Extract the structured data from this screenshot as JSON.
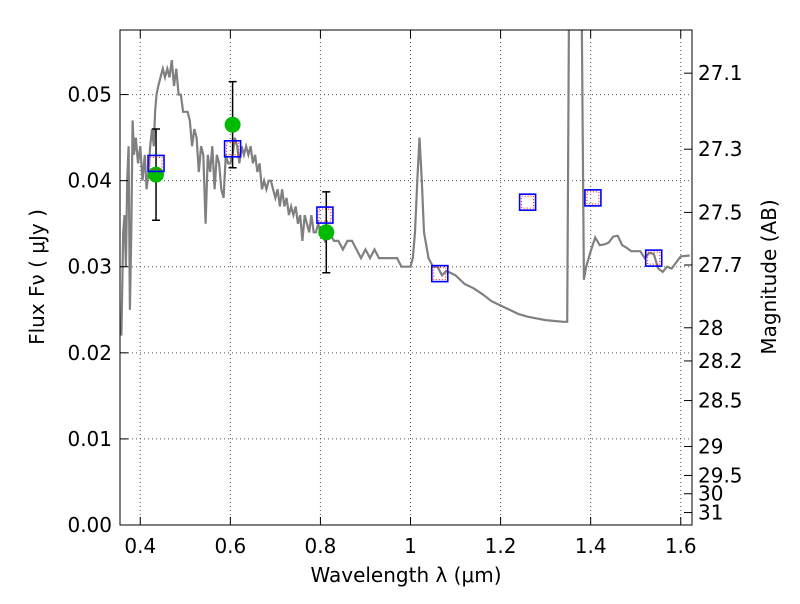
{
  "chart_data": {
    "type": "scatter",
    "xlabel": "Wavelength  λ (μm)",
    "ylabel": "Flux  Fν  ( μJy )",
    "y2label": "Magnitude (AB)",
    "xlim": [
      0.355,
      1.625
    ],
    "ylim": [
      0.0,
      0.0575
    ],
    "grid": true,
    "x_ticks": [
      {
        "value": 0.4,
        "label": "0.4"
      },
      {
        "value": 0.6,
        "label": "0.6"
      },
      {
        "value": 0.8,
        "label": "0.8"
      },
      {
        "value": 1.0,
        "label": "1"
      },
      {
        "value": 1.2,
        "label": "1.2"
      },
      {
        "value": 1.4,
        "label": "1.4"
      },
      {
        "value": 1.6,
        "label": "1.6"
      }
    ],
    "y_ticks": [
      {
        "value": 0.0,
        "label": "0.00"
      },
      {
        "value": 0.01,
        "label": "0.01"
      },
      {
        "value": 0.02,
        "label": "0.02"
      },
      {
        "value": 0.03,
        "label": "0.03"
      },
      {
        "value": 0.04,
        "label": "0.04"
      },
      {
        "value": 0.05,
        "label": "0.05"
      }
    ],
    "y2_ticks": [
      {
        "mag": 27.1,
        "label": "27.1"
      },
      {
        "mag": 27.3,
        "label": "27.3"
      },
      {
        "mag": 27.5,
        "label": "27.5"
      },
      {
        "mag": 27.7,
        "label": "27.7"
      },
      {
        "mag": 28.0,
        "label": "28"
      },
      {
        "mag": 28.2,
        "label": "28.2"
      },
      {
        "mag": 28.5,
        "label": "28.5"
      },
      {
        "mag": 29.0,
        "label": "29"
      },
      {
        "mag": 29.5,
        "label": "29.5"
      },
      {
        "mag": 30.0,
        "label": "30"
      },
      {
        "mag": 31.0,
        "label": "31"
      }
    ],
    "colors": {
      "sed": "#808080",
      "observed": "#00bb00",
      "model_box": "#0000ff",
      "model_inner": "#ff0000",
      "errorbar": "#000000",
      "grid": "#555555"
    },
    "sed": {
      "x": [
        0.358,
        0.362,
        0.365,
        0.368,
        0.371,
        0.374,
        0.377,
        0.38,
        0.383,
        0.386,
        0.39,
        0.395,
        0.4,
        0.405,
        0.41,
        0.414,
        0.418,
        0.422,
        0.426,
        0.43,
        0.433,
        0.436,
        0.44,
        0.445,
        0.45,
        0.455,
        0.46,
        0.465,
        0.47,
        0.475,
        0.48,
        0.485,
        0.49,
        0.495,
        0.5,
        0.505,
        0.51,
        0.515,
        0.52,
        0.525,
        0.53,
        0.535,
        0.54,
        0.545,
        0.55,
        0.555,
        0.56,
        0.565,
        0.57,
        0.575,
        0.58,
        0.585,
        0.59,
        0.595,
        0.6,
        0.605,
        0.61,
        0.615,
        0.62,
        0.625,
        0.63,
        0.635,
        0.64,
        0.645,
        0.65,
        0.655,
        0.66,
        0.665,
        0.67,
        0.675,
        0.68,
        0.685,
        0.69,
        0.695,
        0.7,
        0.705,
        0.71,
        0.715,
        0.72,
        0.725,
        0.73,
        0.735,
        0.74,
        0.745,
        0.75,
        0.755,
        0.76,
        0.765,
        0.77,
        0.775,
        0.78,
        0.785,
        0.79,
        0.795,
        0.8,
        0.81,
        0.82,
        0.83,
        0.84,
        0.85,
        0.86,
        0.87,
        0.88,
        0.89,
        0.9,
        0.91,
        0.92,
        0.93,
        0.94,
        0.95,
        0.96,
        0.97,
        0.98,
        0.99,
        1.0,
        1.005,
        1.01,
        1.015,
        1.02,
        1.025,
        1.03,
        1.04,
        1.05,
        1.06,
        1.07,
        1.08,
        1.1,
        1.12,
        1.14,
        1.16,
        1.18,
        1.2,
        1.22,
        1.24,
        1.26,
        1.28,
        1.3,
        1.32,
        1.34,
        1.348,
        1.352,
        1.356,
        1.36,
        1.364,
        1.368,
        1.372,
        1.376,
        1.38,
        1.385,
        1.39,
        1.4,
        1.41,
        1.42,
        1.43,
        1.44,
        1.45,
        1.46,
        1.47,
        1.48,
        1.49,
        1.5,
        1.51,
        1.52,
        1.53,
        1.54,
        1.55,
        1.56,
        1.57,
        1.58,
        1.59,
        1.6,
        1.62
      ],
      "y": [
        0.022,
        0.034,
        0.036,
        0.03,
        0.04,
        0.044,
        0.025,
        0.034,
        0.047,
        0.043,
        0.045,
        0.042,
        0.044,
        0.04,
        0.043,
        0.039,
        0.041,
        0.044,
        0.046,
        0.044,
        0.048,
        0.05,
        0.051,
        0.052,
        0.053,
        0.052,
        0.053,
        0.052,
        0.054,
        0.051,
        0.053,
        0.05,
        0.05,
        0.048,
        0.048,
        0.048,
        0.047,
        0.044,
        0.046,
        0.045,
        0.041,
        0.044,
        0.043,
        0.035,
        0.043,
        0.041,
        0.044,
        0.039,
        0.043,
        0.042,
        0.039,
        0.038,
        0.043,
        0.042,
        0.042,
        0.043,
        0.045,
        0.044,
        0.042,
        0.044,
        0.043,
        0.044,
        0.043,
        0.044,
        0.042,
        0.043,
        0.041,
        0.042,
        0.039,
        0.04,
        0.039,
        0.04,
        0.04,
        0.039,
        0.038,
        0.039,
        0.037,
        0.039,
        0.037,
        0.038,
        0.036,
        0.037,
        0.036,
        0.037,
        0.035,
        0.036,
        0.033,
        0.036,
        0.035,
        0.034,
        0.036,
        0.034,
        0.034,
        0.035,
        0.034,
        0.033,
        0.034,
        0.033,
        0.033,
        0.032,
        0.033,
        0.033,
        0.032,
        0.031,
        0.032,
        0.031,
        0.032,
        0.031,
        0.031,
        0.031,
        0.031,
        0.031,
        0.03,
        0.03,
        0.03,
        0.031,
        0.034,
        0.04,
        0.045,
        0.04,
        0.034,
        0.031,
        0.03,
        0.03,
        0.029,
        0.0295,
        0.029,
        0.028,
        0.0275,
        0.0268,
        0.026,
        0.0255,
        0.025,
        0.0245,
        0.0242,
        0.024,
        0.0238,
        0.0237,
        0.0236,
        0.0236,
        0.06,
        0.06,
        0.06,
        0.06,
        0.06,
        0.06,
        0.06,
        0.06,
        0.0285,
        0.03,
        0.0318,
        0.0334,
        0.0325,
        0.0326,
        0.0328,
        0.0335,
        0.0336,
        0.0325,
        0.0322,
        0.0318,
        0.0318,
        0.0318,
        0.031,
        0.0316,
        0.0315,
        0.0298,
        0.0294,
        0.03,
        0.0298,
        0.0305,
        0.0312,
        0.0313
      ]
    },
    "model_points": [
      {
        "x": 0.435,
        "y": 0.042
      },
      {
        "x": 0.605,
        "y": 0.0437
      },
      {
        "x": 0.81,
        "y": 0.036
      },
      {
        "x": 1.065,
        "y": 0.0292
      },
      {
        "x": 1.26,
        "y": 0.0375
      },
      {
        "x": 1.405,
        "y": 0.038
      },
      {
        "x": 1.54,
        "y": 0.031
      }
    ],
    "observed_points": [
      {
        "x": 0.435,
        "y": 0.0407,
        "err": 0.0053
      },
      {
        "x": 0.605,
        "y": 0.0465,
        "err": 0.005
      },
      {
        "x": 0.813,
        "y": 0.034,
        "err": 0.0047
      }
    ]
  }
}
